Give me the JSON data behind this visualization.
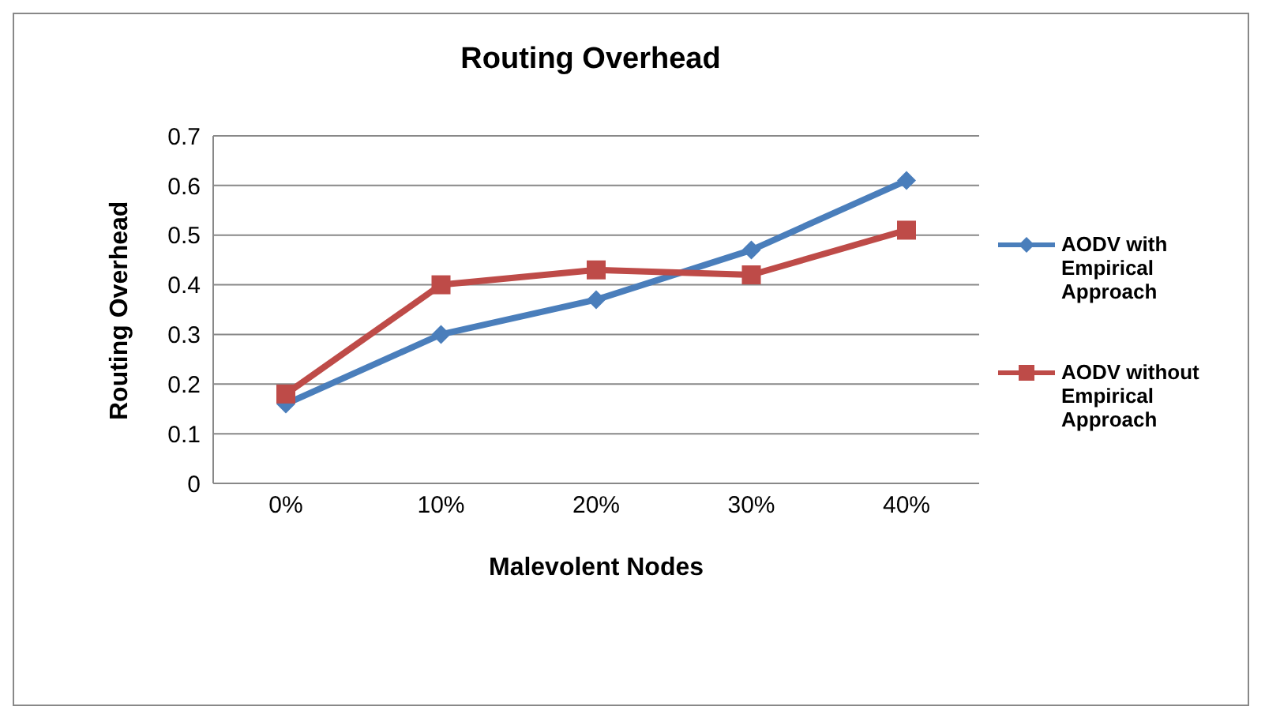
{
  "chart_data": {
    "type": "line",
    "title": "Routing Overhead",
    "xlabel": "Malevolent Nodes",
    "ylabel": "Routing Overhead",
    "categories": [
      "0%",
      "10%",
      "20%",
      "30%",
      "40%"
    ],
    "series": [
      {
        "name": "AODV with Empirical Approach",
        "color": "#4a7ebb",
        "marker": "diamond",
        "values": [
          0.16,
          0.3,
          0.37,
          0.47,
          0.61
        ]
      },
      {
        "name": "AODV without Empirical Approach",
        "color": "#be4b48",
        "marker": "square",
        "values": [
          0.18,
          0.4,
          0.43,
          0.42,
          0.51
        ]
      }
    ],
    "ylim": [
      0,
      0.7
    ],
    "yticks": [
      0,
      0.1,
      0.2,
      0.3,
      0.4,
      0.5,
      0.6,
      0.7
    ],
    "grid": "y",
    "legend": "right"
  }
}
